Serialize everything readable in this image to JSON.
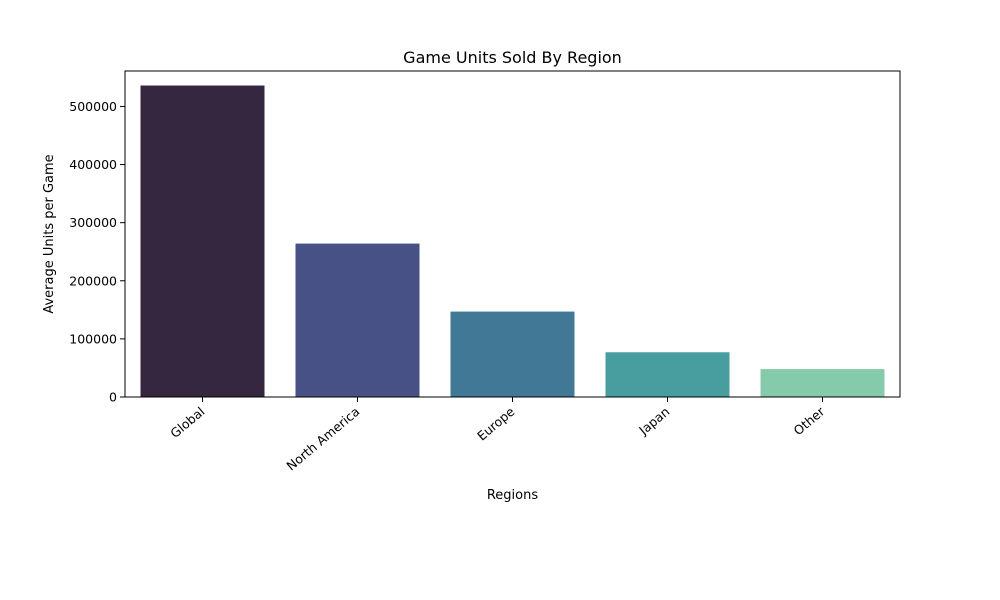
{
  "chart_data": {
    "type": "bar",
    "title": "Game Units Sold By Region",
    "xlabel": "Regions",
    "ylabel": "Average Units per Game",
    "categories": [
      "Global",
      "North America",
      "Europe",
      "Japan",
      "Other"
    ],
    "values": [
      536000,
      264000,
      147000,
      77000,
      48000
    ],
    "colors": [
      "#35273f",
      "#475186",
      "#417896",
      "#489e9f",
      "#85cbaa"
    ],
    "ylim": [
      0,
      561000
    ],
    "yticks": [
      0,
      100000,
      200000,
      300000,
      400000,
      500000
    ],
    "ytick_labels": [
      "0",
      "100000",
      "200000",
      "300000",
      "400000",
      "500000"
    ],
    "grid": false,
    "legend": false
  }
}
